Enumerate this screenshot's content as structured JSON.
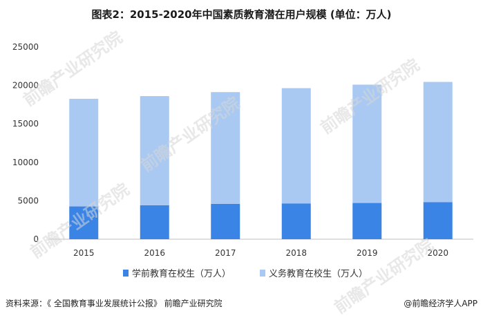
{
  "title": "图表2：2015-2020年中国素质教育潜在用户规模 (单位：万人)",
  "footer": {
    "source": "资料来源：《 全国教育事业发展统计公报》 前瞻产业研究院",
    "brand": "@前瞻经济学人APP"
  },
  "watermark": "前瞻产业研究院",
  "chart_data": {
    "type": "bar",
    "stacked": true,
    "categories": [
      "2015",
      "2016",
      "2017",
      "2018",
      "2019",
      "2020"
    ],
    "series": [
      {
        "name": "学前教育在校生（万人）",
        "values": [
          4265,
          4414,
          4600,
          4656,
          4714,
          4818
        ],
        "color": "#3a84e6"
      },
      {
        "name": "义务教育在校生（万人）",
        "values": [
          14000,
          14200,
          14535,
          14991,
          15389,
          15641
        ],
        "color": "#a9c9f2"
      }
    ],
    "ylim": [
      0,
      25000
    ],
    "yticks": [
      "0",
      "5000",
      "10000",
      "15000",
      "20000",
      "25000"
    ],
    "grid": false,
    "legend": "bottom"
  }
}
